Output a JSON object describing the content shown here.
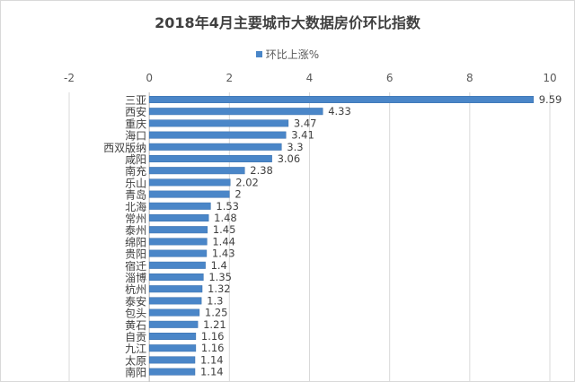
{
  "chart_data": {
    "type": "bar",
    "orientation": "horizontal",
    "title": "2018年4月主要城市大数据房价环比指数",
    "legend": {
      "label": "环比上涨%",
      "position": "top"
    },
    "xlim": [
      -2,
      10
    ],
    "xticks": [
      -2,
      0,
      2,
      4,
      6,
      8,
      10
    ],
    "grid": true,
    "series": [
      {
        "name": "环比上涨%",
        "color": "#4a86c8",
        "categories": [
          "三亚",
          "西安",
          "重庆",
          "海口",
          "西双版纳",
          "咸阳",
          "南充",
          "乐山",
          "青岛",
          "北海",
          "常州",
          "泰州",
          "绵阳",
          "贵阳",
          "宿迁",
          "淄博",
          "杭州",
          "泰安",
          "包头",
          "黄石",
          "自贡",
          "九江",
          "太原",
          "南阳"
        ],
        "values": [
          9.59,
          4.33,
          3.47,
          3.41,
          3.3,
          3.06,
          2.38,
          2.02,
          2,
          1.53,
          1.48,
          1.45,
          1.44,
          1.43,
          1.4,
          1.35,
          1.32,
          1.3,
          1.25,
          1.21,
          1.16,
          1.16,
          1.14,
          1.14
        ]
      }
    ]
  }
}
